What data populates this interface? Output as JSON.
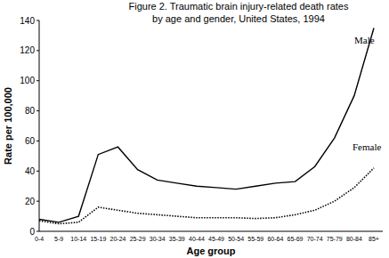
{
  "chart_data": {
    "type": "line",
    "title": "Figure 2.  Traumatic brain injury-related death rates",
    "subtitle": "by age and gender, United States, 1994",
    "x_label": "Age group",
    "y_label": "Rate per 100,000",
    "categories": [
      "0-4",
      "5-9",
      "10-14",
      "15-19",
      "20-24",
      "25-29",
      "30-34",
      "35-39",
      "40-44",
      "45-49",
      "50-54",
      "55-59",
      "60-64",
      "65-69",
      "70-74",
      "75-79",
      "80-84",
      "85+"
    ],
    "series": [
      {
        "name": "Male",
        "color": "#000000",
        "line_style": "solid",
        "values": [
          8,
          6,
          10,
          51,
          56,
          41,
          34,
          32,
          30,
          29,
          28,
          30,
          32,
          33,
          43,
          62,
          90,
          135
        ]
      },
      {
        "name": "Female",
        "color": "#000000",
        "line_style": "dotted",
        "values": [
          7,
          5,
          6,
          16,
          14,
          12,
          11,
          10,
          9,
          9,
          9,
          8.5,
          9,
          11,
          14,
          20,
          29,
          42
        ]
      }
    ],
    "ylim": [
      0,
      140
    ],
    "yticks": [
      0,
      20,
      40,
      60,
      80,
      100,
      120,
      140
    ],
    "grid": false
  }
}
